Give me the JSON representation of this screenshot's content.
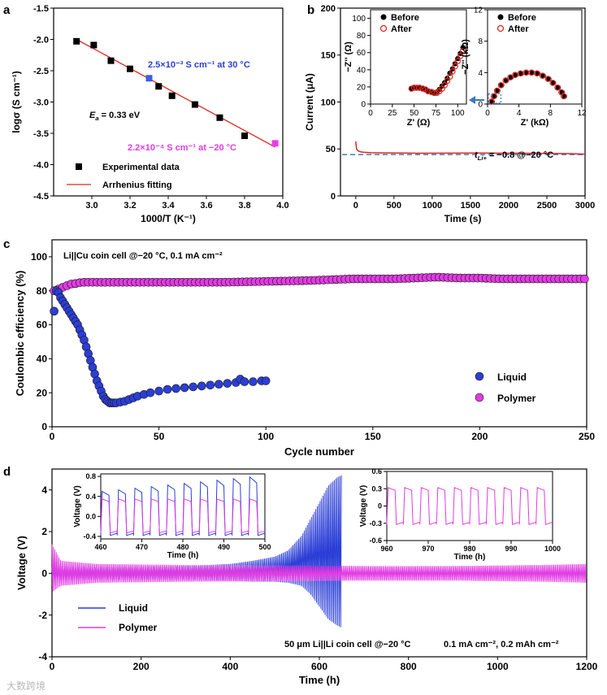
{
  "panels": {
    "a": {
      "letter": "a"
    },
    "b": {
      "letter": "b"
    },
    "c": {
      "letter": "c"
    },
    "d": {
      "letter": "d"
    }
  },
  "watermark": "大数跨境",
  "chart_data": [
    {
      "id": "a",
      "type": "scatter",
      "xlabel": "1000/T (K⁻¹)",
      "ylabel": "logσ (S cm⁻¹)",
      "xlim": [
        2.8,
        4.0
      ],
      "ylim": [
        -4.5,
        -1.5
      ],
      "xticks": [
        "3.0",
        "3.2",
        "3.4",
        "3.6",
        "3.8",
        "4.0"
      ],
      "yticks": [
        "-1.5",
        "-2.0",
        "-2.5",
        "-3.0",
        "-3.5",
        "-4.0",
        "-4.5"
      ],
      "series": [
        {
          "name": "Experimental data",
          "color": "#000000",
          "x": [
            2.92,
            3.01,
            3.1,
            3.2,
            3.3,
            3.35,
            3.42,
            3.54,
            3.67,
            3.8
          ],
          "y": [
            -2.03,
            -2.09,
            -2.34,
            -2.47,
            -2.62,
            -2.75,
            -2.9,
            -3.04,
            -3.25,
            -3.54
          ]
        },
        {
          "name": "Arrhenius fitting",
          "color": "#e0261d",
          "line": true,
          "x": [
            2.92,
            3.96
          ],
          "y": [
            -2.0,
            -3.72
          ]
        }
      ],
      "highlight_points": [
        {
          "x": 3.3,
          "y": -2.62,
          "color": "#3a5ee8"
        },
        {
          "x": 3.96,
          "y": -3.66,
          "color": "#ec3ae8"
        }
      ],
      "annotations": [
        {
          "text": "2.5×10⁻³ S cm⁻¹ at 30 °C",
          "color": "#2b3ed6"
        },
        {
          "text": "2.2×10⁻⁴ S cm⁻¹ at −20 °C",
          "color": "#e23be3"
        },
        {
          "prefix": "E",
          "sub": "a",
          "rest": " = 0.33 eV",
          "color": "#000000"
        }
      ]
    },
    {
      "id": "b",
      "type": "line",
      "xlabel": "Time (s)",
      "ylabel": "Current (μA)",
      "xlim": [
        -200,
        3000
      ],
      "ylim": [
        0,
        200
      ],
      "xticks": [
        "0",
        "500",
        "1000",
        "1500",
        "2000",
        "2500",
        "3000"
      ],
      "yticks": [
        "0",
        "50",
        "100",
        "150",
        "200"
      ],
      "series": [
        {
          "name": "current",
          "color": "#e0261d",
          "x": [
            0,
            10,
            30,
            60,
            100,
            200,
            400,
            800,
            1200,
            1600,
            2000,
            2400,
            2800,
            3000
          ],
          "y": [
            58,
            50,
            48,
            47,
            46.5,
            46,
            45.8,
            45.5,
            45.6,
            45.7,
            45.5,
            45.3,
            45.0,
            44.5
          ]
        }
      ],
      "baseline": {
        "y": 44,
        "color": "#4a87c9"
      },
      "annotation": {
        "prefix": "t",
        "sub": "Li+",
        "rest": " = ~0.8 @−20 °C"
      },
      "insets": [
        {
          "xlabel": "Z' (Ω)",
          "ylabel": "−Z'' (Ω)",
          "xlim": [
            0,
            110
          ],
          "ylim": [
            0,
            110
          ],
          "xticks": [
            "0",
            "25",
            "50",
            "75",
            "100"
          ],
          "yticks": [
            "0",
            "20",
            "40",
            "60",
            "80",
            "100"
          ],
          "legend": [
            "Before",
            "After"
          ],
          "series": [
            {
              "name": "Before",
              "color": "#000000",
              "x": [
                47,
                50,
                53,
                56,
                60,
                63,
                66,
                70,
                73,
                76,
                79,
                82,
                85,
                88,
                91,
                94,
                97,
                100,
                103,
                106
              ],
              "y": [
                18,
                19,
                19,
                19,
                18,
                17,
                15,
                14,
                13,
                14,
                17,
                21,
                25,
                30,
                36,
                41,
                47,
                53,
                59,
                66
              ]
            },
            {
              "name": "After",
              "color": "#e0261d",
              "x": [
                47,
                50,
                53,
                56,
                60,
                63,
                66,
                70,
                73,
                76,
                79,
                82,
                85,
                88,
                91,
                94,
                97,
                100,
                103,
                106
              ],
              "y": [
                18,
                19,
                19,
                19,
                18,
                17,
                15,
                14,
                13,
                13,
                15,
                18,
                22,
                27,
                32,
                38,
                44,
                50,
                56,
                62
              ]
            }
          ]
        },
        {
          "xlabel": "Z' (kΩ)",
          "ylabel": "−Z'' (kΩ)",
          "xlim": [
            0,
            12
          ],
          "ylim": [
            0,
            12
          ],
          "xticks": [
            "0",
            "4",
            "8",
            "12"
          ],
          "yticks": [
            "0",
            "4",
            "8",
            "12"
          ],
          "legend": [
            "Before",
            "After"
          ],
          "series": [
            {
              "name": "Before",
              "color": "#000000",
              "x": [
                0.6,
                0.9,
                1.3,
                1.8,
                2.4,
                3.0,
                3.6,
                4.3,
                5.0,
                5.7,
                6.4,
                7.1,
                7.8,
                8.4,
                9.0,
                9.5,
                9.8
              ],
              "y": [
                0.3,
                1.0,
                1.7,
                2.4,
                3.0,
                3.4,
                3.7,
                3.9,
                4.0,
                4.0,
                3.9,
                3.6,
                3.2,
                2.7,
                2.1,
                1.5,
                1.0
              ]
            },
            {
              "name": "After",
              "color": "#e0261d",
              "x": [
                0.5,
                0.8,
                1.2,
                1.7,
                2.3,
                2.9,
                3.5,
                4.2,
                4.9,
                5.6,
                6.3,
                7.0,
                7.7,
                8.3,
                8.9,
                9.4,
                9.7
              ],
              "y": [
                0.3,
                1.0,
                1.7,
                2.4,
                3.0,
                3.4,
                3.7,
                3.9,
                4.0,
                4.0,
                3.9,
                3.6,
                3.2,
                2.7,
                2.1,
                1.5,
                1.0
              ]
            }
          ]
        }
      ]
    },
    {
      "id": "c",
      "type": "scatter",
      "xlabel": "Cycle number",
      "ylabel": "Coulombic efficiency (%)",
      "xlim": [
        0,
        250
      ],
      "ylim": [
        0,
        110
      ],
      "xticks": [
        "0",
        "50",
        "100",
        "150",
        "200",
        "250"
      ],
      "yticks": [
        "0",
        "20",
        "40",
        "60",
        "80",
        "100"
      ],
      "annotation": "Li||Cu coin cell @−20 °C, 0.1 mA cm⁻²",
      "series": [
        {
          "name": "Liquid",
          "color": "#2b3ed6",
          "x": [
            1,
            2,
            3,
            4,
            5,
            6,
            7,
            8,
            9,
            10,
            11,
            12,
            13,
            14,
            15,
            16,
            17,
            18,
            19,
            20,
            21,
            22,
            23,
            24,
            25,
            26,
            27,
            28,
            29,
            30,
            32,
            34,
            36,
            38,
            40,
            43,
            46,
            50,
            54,
            58,
            62,
            66,
            70,
            74,
            78,
            82,
            86,
            88,
            90,
            94,
            98,
            100
          ],
          "y": [
            68,
            80,
            79,
            76,
            74,
            72,
            70,
            68,
            66,
            64,
            62,
            60,
            57,
            54,
            51,
            47,
            43,
            39,
            35,
            31,
            27,
            24,
            21,
            18,
            16,
            15,
            14,
            14,
            14,
            14,
            14.5,
            15,
            16,
            17,
            18,
            19,
            20,
            21,
            22,
            22.5,
            23,
            23.5,
            24,
            24.5,
            25,
            25.5,
            26,
            28,
            26.5,
            26.5,
            27,
            27
          ]
        },
        {
          "name": "Polymer",
          "color": "#e23be3",
          "x": [
            1,
            2,
            3,
            4,
            5,
            6,
            7,
            8,
            9,
            10,
            12,
            14,
            16,
            18,
            20,
            25,
            30,
            40,
            50,
            60,
            80,
            100,
            120,
            140,
            160,
            170,
            180,
            190,
            200,
            210,
            220,
            230,
            240,
            250
          ],
          "y": [
            80,
            80,
            81,
            81,
            82,
            82,
            83,
            83,
            84,
            84,
            84.5,
            85,
            85,
            85,
            85,
            85,
            85,
            85,
            85,
            85,
            85,
            85.5,
            86,
            87,
            87,
            87.5,
            88,
            87.5,
            87.5,
            87,
            87,
            87,
            87,
            87
          ]
        }
      ]
    },
    {
      "id": "d",
      "type": "line",
      "xlabel": "Time (h)",
      "ylabel": "Voltage (V)",
      "xlim": [
        0,
        1200
      ],
      "ylim": [
        -4,
        5
      ],
      "xticks": [
        "0",
        "200",
        "400",
        "600",
        "800",
        "1000",
        "1200"
      ],
      "yticks": [
        "-4",
        "-2",
        "0",
        "2",
        "4"
      ],
      "annotation_left": "50 μm Li||Li coin cell @−20 °C",
      "annotation_right": "0.1 mA cm⁻², 0.2 mAh cm⁻²",
      "series": [
        {
          "name": "Liquid",
          "color": "#2b3ed6",
          "x": [
            0,
            100,
            200,
            300,
            400,
            450,
            500,
            530,
            560,
            580,
            600,
            620,
            640,
            650
          ],
          "upper": [
            0.3,
            0.3,
            0.3,
            0.35,
            0.45,
            0.6,
            0.8,
            1.1,
            1.8,
            2.6,
            3.4,
            4.2,
            4.6,
            4.7
          ],
          "lower": [
            -0.3,
            -0.3,
            -0.3,
            -0.3,
            -0.35,
            -0.4,
            -0.4,
            -0.45,
            -0.6,
            -1.0,
            -1.6,
            -2.2,
            -2.5,
            -2.6
          ]
        },
        {
          "name": "Polymer",
          "color": "#e23be3",
          "x": [
            0,
            20,
            100,
            300,
            500,
            700,
            900,
            1100,
            1200
          ],
          "upper": [
            1.4,
            0.6,
            0.45,
            0.4,
            0.38,
            0.35,
            0.35,
            0.4,
            0.45
          ],
          "lower": [
            -0.9,
            -0.6,
            -0.45,
            -0.4,
            -0.38,
            -0.35,
            -0.35,
            -0.4,
            -0.45
          ]
        }
      ],
      "insets": [
        {
          "xlabel": "Time (h)",
          "ylabel": "Voltage (V)",
          "xlim": [
            460,
            500
          ],
          "ylim": [
            -0.45,
            0.85
          ],
          "xticks": [
            "460",
            "470",
            "480",
            "490",
            "500"
          ],
          "yticks": [
            "-0.4",
            "0.0",
            "0.4",
            "0.8"
          ],
          "period": 4,
          "series": [
            {
              "name": "Liquid",
              "color": "#2b3ed6",
              "amp_start": 0.5,
              "amp_end": 0.82,
              "low": -0.38
            },
            {
              "name": "Polymer",
              "color": "#e23be3",
              "amp_start": 0.35,
              "amp_end": 0.35,
              "low": -0.33
            }
          ]
        },
        {
          "xlabel": "Time (h)",
          "ylabel": "Voltage (V)",
          "xlim": [
            960,
            1000
          ],
          "ylim": [
            -0.6,
            0.6
          ],
          "xticks": [
            "960",
            "970",
            "980",
            "990",
            "1000"
          ],
          "yticks": [
            "-0.6",
            "-0.3",
            "0",
            "0.3",
            "0.6"
          ],
          "period": 4,
          "series": [
            {
              "name": "Polymer",
              "color": "#e23be3",
              "amp_start": 0.32,
              "amp_end": 0.32,
              "low": -0.32
            }
          ]
        }
      ]
    }
  ]
}
